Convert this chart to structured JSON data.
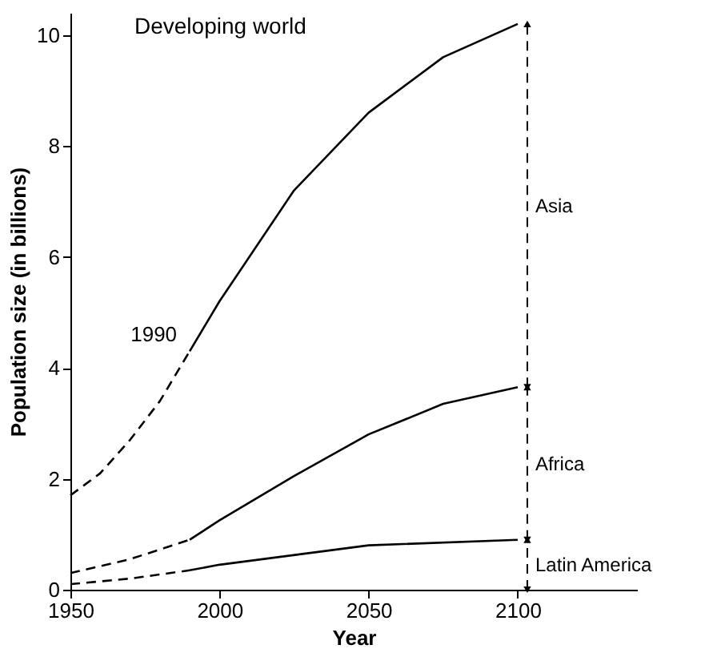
{
  "chart_data": {
    "type": "line",
    "title": "Developing world",
    "xlabel": "Year",
    "ylabel": "Population size (in billions)",
    "xlim": [
      1950,
      2140
    ],
    "ylim": [
      0,
      10.4
    ],
    "xticks": [
      1950,
      2000,
      2050,
      2100
    ],
    "yticks": [
      0,
      2,
      4,
      6,
      8,
      10
    ],
    "grid": false,
    "marker": "none",
    "series": [
      {
        "color": "#000000",
        "line_style": "dashed",
        "x": [
          1950,
          1960,
          1970,
          1980,
          1990
        ],
        "values": [
          1.7,
          2.1,
          2.7,
          3.4,
          4.3
        ]
      },
      {
        "color": "#000000",
        "line_style": "solid",
        "x": [
          1990,
          2000,
          2025,
          2050,
          2075,
          2100
        ],
        "values": [
          4.3,
          5.2,
          7.2,
          8.6,
          9.6,
          10.2
        ]
      },
      {
        "color": "#000000",
        "line_style": "dashed",
        "x": [
          1950,
          1970,
          1990
        ],
        "values": [
          0.3,
          0.55,
          0.9
        ]
      },
      {
        "color": "#000000",
        "line_style": "solid",
        "x": [
          1990,
          2000,
          2025,
          2050,
          2075,
          2100
        ],
        "values": [
          0.9,
          1.25,
          2.05,
          2.8,
          3.35,
          3.65
        ]
      },
      {
        "color": "#000000",
        "line_style": "dashed",
        "x": [
          1950,
          1970,
          1990
        ],
        "values": [
          0.1,
          0.2,
          0.35
        ]
      },
      {
        "color": "#000000",
        "line_style": "solid",
        "x": [
          1990,
          2000,
          2050,
          2100
        ],
        "values": [
          0.35,
          0.45,
          0.8,
          0.9
        ]
      }
    ],
    "annotations": [
      {
        "text": "1990",
        "x": 1990,
        "y": 4.3
      },
      "Asia",
      "Africa",
      "Latin America"
    ]
  }
}
